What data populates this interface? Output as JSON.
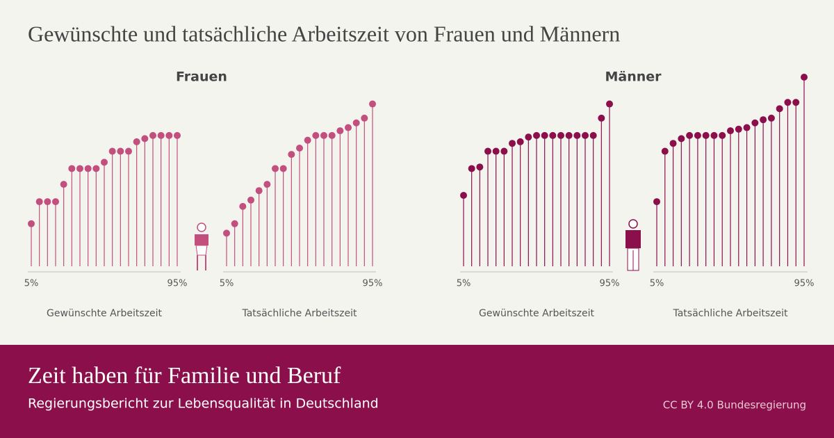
{
  "title": "Gewünschte und tatsächliche Arbeitszeit von Frauen und Männern",
  "panels": [
    "Frauen",
    "Männer"
  ],
  "footer": {
    "title": "Zeit haben für Familie und Beruf",
    "subtitle": "Regierungsbericht zur Lebensqualität in Deutschland",
    "credit": "CC BY 4.0 Bundesregierung"
  },
  "chart_data": [
    {
      "type": "lollipop",
      "xlabel": "Gewünschte Arbeitszeit",
      "color": "#c24f7e",
      "ylim": [
        0,
        60
      ],
      "categories": [
        "5%",
        null,
        null,
        null,
        null,
        null,
        null,
        null,
        null,
        null,
        null,
        null,
        null,
        null,
        null,
        null,
        null,
        null,
        "95%"
      ],
      "values": [
        13.5,
        20.5,
        20.5,
        20.5,
        26,
        31,
        31,
        31,
        31,
        33,
        36.5,
        36.5,
        36.5,
        39.5,
        40.5,
        41.5,
        41.5,
        41.5,
        41.5
      ]
    },
    {
      "type": "lollipop",
      "xlabel": "Tatsächliche Arbeitszeit",
      "color": "#c24f7e",
      "ylim": [
        0,
        60
      ],
      "categories": [
        "5%",
        null,
        null,
        null,
        null,
        null,
        null,
        null,
        null,
        null,
        null,
        null,
        null,
        null,
        null,
        null,
        null,
        null,
        "95%"
      ],
      "values": [
        10.5,
        13.5,
        19,
        21,
        24,
        26,
        31,
        31,
        35.5,
        37.5,
        40,
        41.5,
        41.5,
        41.5,
        43,
        44,
        45.5,
        47,
        51.5
      ]
    },
    {
      "type": "lollipop",
      "xlabel": "Gewünschte Arbeitszeit",
      "color": "#8a0f4a",
      "ylim": [
        0,
        60
      ],
      "categories": [
        "5%",
        null,
        null,
        null,
        null,
        null,
        null,
        null,
        null,
        null,
        null,
        null,
        null,
        null,
        null,
        null,
        null,
        null,
        "95%"
      ],
      "values": [
        22.5,
        31,
        31.5,
        36.5,
        36.5,
        36.5,
        39,
        39.5,
        41,
        41.5,
        41.5,
        41.5,
        41.5,
        41.5,
        41.5,
        41.5,
        41.5,
        47,
        51.5
      ]
    },
    {
      "type": "lollipop",
      "xlabel": "Tatsächliche Arbeitszeit",
      "color": "#8a0f4a",
      "ylim": [
        0,
        60
      ],
      "categories": [
        "5%",
        null,
        null,
        null,
        null,
        null,
        null,
        null,
        null,
        null,
        null,
        null,
        null,
        null,
        null,
        null,
        null,
        null,
        "95%"
      ],
      "values": [
        20.5,
        36.5,
        39,
        40.5,
        41.5,
        41.5,
        41.5,
        41.5,
        41.5,
        43,
        43.5,
        44,
        45.5,
        46.5,
        47,
        50,
        52,
        52,
        60
      ]
    }
  ]
}
